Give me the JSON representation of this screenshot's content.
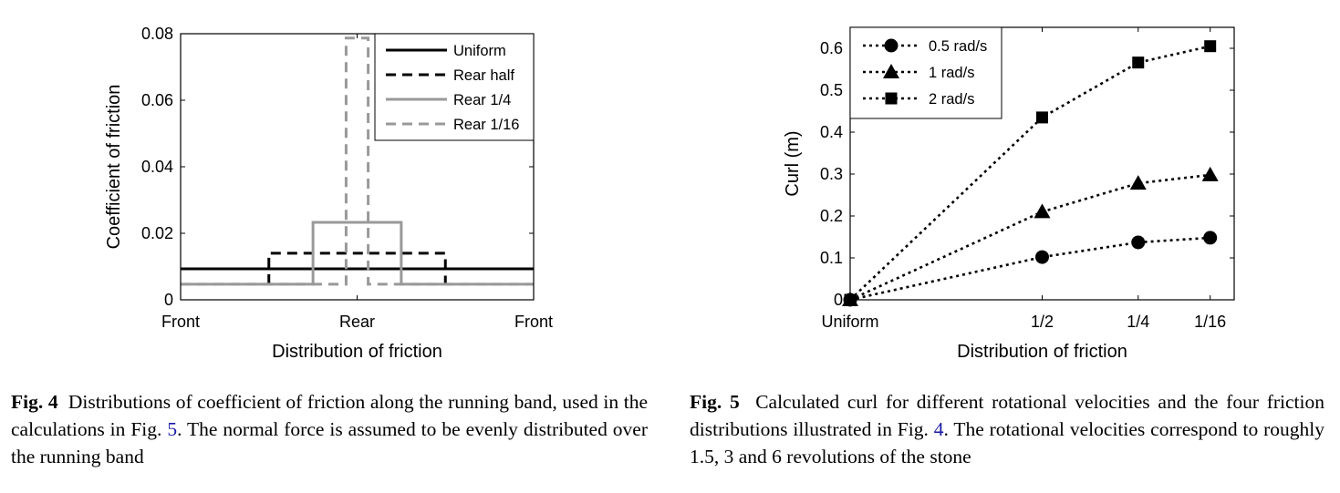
{
  "charts": {
    "chart_data": [
      {
        "type": "line",
        "figure": "Fig. 4",
        "xlabel": "Distribution of friction",
        "ylabel": "Coefficient of friction",
        "x_tick_labels": [
          "Front",
          "Rear",
          "Front"
        ],
        "y_ticks": [
          0,
          0.02,
          0.04,
          0.06,
          0.08
        ],
        "y_tick_labels": [
          "0",
          "0.02",
          "0.04",
          "0.06",
          "0.08"
        ],
        "xlim": [
          0,
          1
        ],
        "ylim": [
          0,
          0.08
        ],
        "legend_position": "top-right",
        "series": [
          {
            "name": "Uniform",
            "style": "solid",
            "color": "#000000",
            "x": [
              0,
              1
            ],
            "y": [
              0.0093,
              0.0093
            ]
          },
          {
            "name": "Rear half",
            "style": "dashed",
            "color": "#000000",
            "x": [
              0.25,
              0.25,
              0.75,
              0.75
            ],
            "y": [
              0.0047,
              0.014,
              0.014,
              0.0047
            ]
          },
          {
            "name": "Rear 1/4",
            "style": "solid",
            "color": "#999999",
            "x": [
              0,
              0.375,
              0.375,
              0.625,
              0.625,
              1
            ],
            "y": [
              0.0047,
              0.0047,
              0.0233,
              0.0233,
              0.0047,
              0.0047
            ]
          },
          {
            "name": "Rear 1/16",
            "style": "dashed",
            "color": "#999999",
            "x": [
              0,
              0.4688,
              0.4688,
              0.5313,
              0.5313,
              1
            ],
            "y": [
              0.0047,
              0.0047,
              0.0787,
              0.0787,
              0.0047,
              0.0047
            ]
          }
        ]
      },
      {
        "type": "line",
        "figure": "Fig. 5",
        "xlabel": "Distribution of friction",
        "ylabel": "Curl (m)",
        "categories": [
          "Uniform",
          "1/2",
          "1/4",
          "1/16"
        ],
        "x": [
          0,
          0.5,
          0.75,
          0.9375
        ],
        "xlim": [
          0,
          1
        ],
        "y_ticks": [
          0,
          0.1,
          0.2,
          0.3,
          0.4,
          0.5,
          0.6
        ],
        "y_tick_labels": [
          "0",
          "0.1",
          "0.2",
          "0.3",
          "0.4",
          "0.5",
          "0.6"
        ],
        "ylim": [
          0,
          0.65
        ],
        "legend_position": "top-left",
        "series": [
          {
            "name": "0.5 rad/s",
            "marker": "circle",
            "style": "dotted",
            "values": [
              0,
              0.102,
              0.137,
              0.148
            ]
          },
          {
            "name": "1 rad/s",
            "marker": "triangle",
            "style": "dotted",
            "values": [
              0,
              0.21,
              0.278,
              0.298
            ]
          },
          {
            "name": "2 rad/s",
            "marker": "square",
            "style": "dotted",
            "values": [
              0,
              0.435,
              0.566,
              0.605
            ]
          }
        ]
      }
    ]
  },
  "captions": {
    "fig4": {
      "label": "Fig. 4",
      "text_before": "Distributions of coefficient of friction along the running band, used in the calculations in Fig.",
      "ref": "5",
      "text_after": ". The normal force is assumed to be evenly distributed over the running band"
    },
    "fig5": {
      "label": "Fig. 5",
      "text_before": "Calculated curl for different rotational velocities and the four friction distributions illustrated in Fig.",
      "ref": "4",
      "text_after": ". The rotational velocities correspond to roughly 1.5, 3 and 6 revolutions of the stone"
    }
  }
}
